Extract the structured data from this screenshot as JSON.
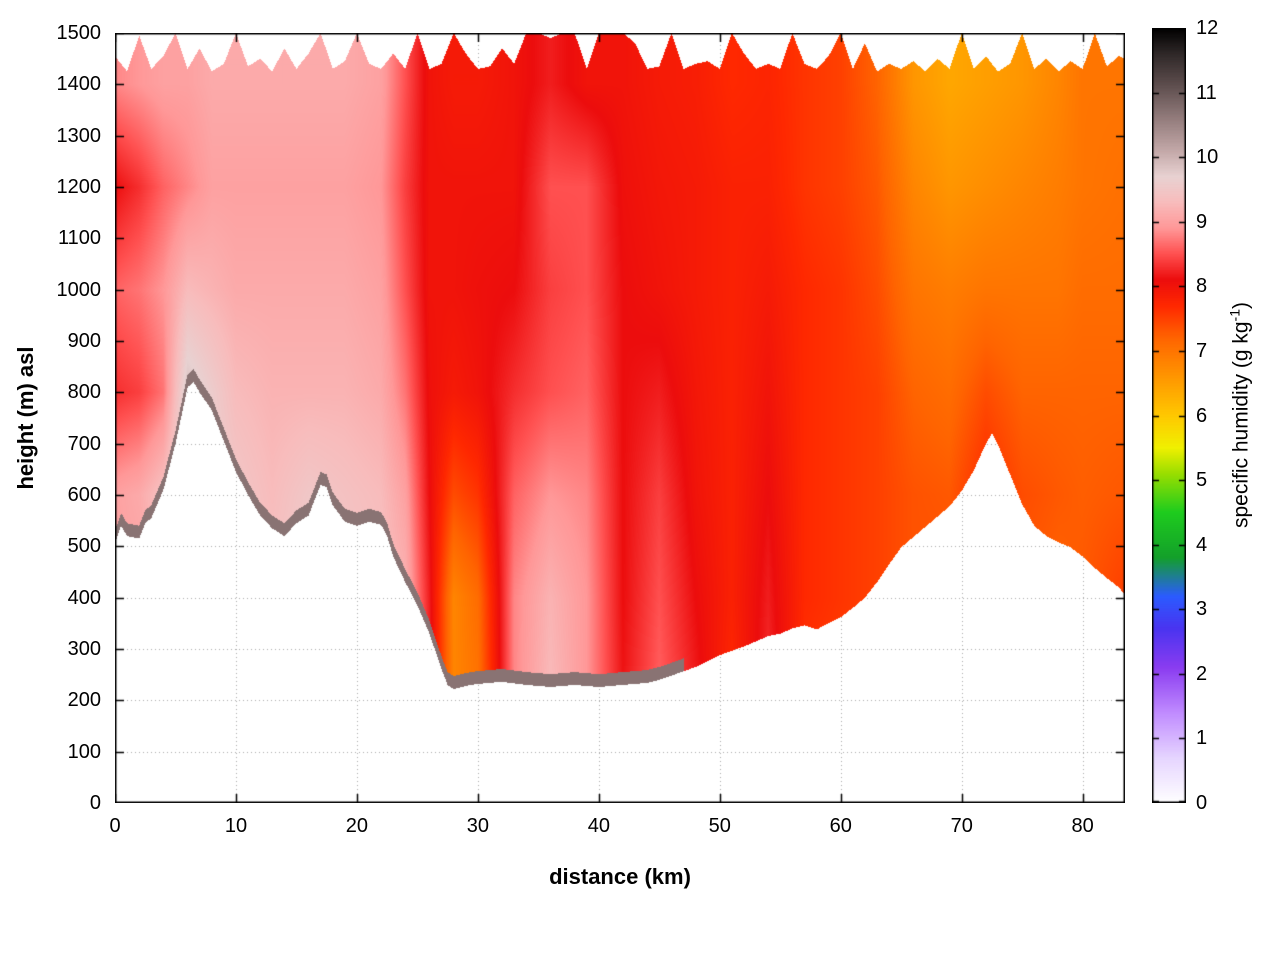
{
  "chart_data": {
    "type": "heatmap",
    "title": "",
    "xlabel": "distance (km)",
    "ylabel": "height (m) asl",
    "xlim": [
      0,
      83.5
    ],
    "ylim": [
      0,
      1500
    ],
    "xticks": [
      0,
      10,
      20,
      30,
      40,
      50,
      60,
      70,
      80
    ],
    "yticks": [
      0,
      100,
      200,
      300,
      400,
      500,
      600,
      700,
      800,
      900,
      1000,
      1100,
      1200,
      1300,
      1400,
      1500
    ],
    "grid_style": "dotted",
    "grid_color": "#a8a8a8",
    "colorbar": {
      "label_prefix": "specific humidity (g kg",
      "label_sup": "-1",
      "label_suffix": ")",
      "range": [
        0,
        12
      ],
      "ticks": [
        0,
        1,
        2,
        3,
        4,
        5,
        6,
        7,
        8,
        9,
        10,
        11,
        12
      ]
    },
    "palette": [
      [
        0.0,
        "#ffffff"
      ],
      [
        0.7,
        "#e6d5ff"
      ],
      [
        1.4,
        "#c08bff"
      ],
      [
        2.1,
        "#8a3cf0"
      ],
      [
        2.7,
        "#4a34f0"
      ],
      [
        3.2,
        "#2b5bff"
      ],
      [
        3.8,
        "#13a02a"
      ],
      [
        4.5,
        "#1ecc1e"
      ],
      [
        5.1,
        "#9ade00"
      ],
      [
        5.5,
        "#f0f000"
      ],
      [
        6.0,
        "#ffc800"
      ],
      [
        6.6,
        "#ff9600"
      ],
      [
        7.2,
        "#ff6400"
      ],
      [
        7.7,
        "#ff2800"
      ],
      [
        8.1,
        "#ec0d0d"
      ],
      [
        8.5,
        "#ff5050"
      ],
      [
        8.9,
        "#ff9898"
      ],
      [
        9.3,
        "#f8bcbc"
      ],
      [
        9.7,
        "#e8d2d2"
      ],
      [
        10.1,
        "#c3a8a8"
      ],
      [
        10.6,
        "#937c7c"
      ],
      [
        11.1,
        "#5f4f4f"
      ],
      [
        11.6,
        "#2f2828"
      ],
      [
        12.0,
        "#000000"
      ]
    ],
    "terrain": {
      "x": [
        0,
        0.5,
        1,
        2,
        2.5,
        3,
        4,
        5,
        6,
        6.5,
        7,
        8,
        9,
        10,
        11,
        12,
        13,
        14,
        15,
        16,
        17,
        17.5,
        18,
        19,
        20,
        21,
        22,
        22.5,
        23,
        24,
        25,
        26,
        27,
        27.5,
        28,
        29,
        30,
        32,
        34,
        36,
        38,
        40,
        42,
        44,
        45,
        46,
        48,
        50,
        52,
        54,
        55,
        56,
        57,
        58,
        59,
        60,
        61,
        62,
        63,
        64,
        65,
        66,
        67,
        68,
        69,
        70,
        71,
        72,
        72.5,
        73,
        74,
        75,
        76,
        77,
        78,
        79,
        80,
        81,
        82,
        83,
        83.5
      ],
      "h": [
        505,
        540,
        520,
        515,
        545,
        555,
        610,
        700,
        810,
        820,
        800,
        765,
        705,
        645,
        600,
        560,
        535,
        520,
        545,
        560,
        620,
        615,
        580,
        548,
        540,
        548,
        542,
        520,
        480,
        430,
        385,
        330,
        260,
        230,
        222,
        228,
        232,
        236,
        230,
        226,
        230,
        226,
        230,
        234,
        240,
        248,
        265,
        288,
        305,
        325,
        330,
        340,
        346,
        338,
        350,
        362,
        380,
        400,
        430,
        465,
        498,
        518,
        538,
        558,
        578,
        608,
        648,
        700,
        720,
        698,
        640,
        582,
        540,
        520,
        508,
        498,
        480,
        458,
        438,
        420,
        405
      ]
    },
    "top_edge": {
      "x": [
        0,
        1,
        2,
        3,
        4,
        5,
        6,
        7,
        8,
        9,
        10,
        11,
        12,
        13,
        14,
        15,
        16,
        17,
        18,
        19,
        20,
        21,
        22,
        23,
        24,
        25,
        26,
        27,
        28,
        29,
        30,
        31,
        32,
        33,
        34,
        35,
        36,
        37,
        38,
        39,
        40,
        41,
        42,
        43,
        44,
        45,
        46,
        47,
        48,
        49,
        50,
        51,
        52,
        53,
        54,
        55,
        56,
        57,
        58,
        59,
        60,
        61,
        62,
        63,
        64,
        65,
        66,
        67,
        68,
        69,
        70,
        71,
        72,
        73,
        74,
        75,
        76,
        77,
        78,
        79,
        80,
        81,
        82,
        83,
        83.5
      ],
      "h": [
        1455,
        1425,
        1495,
        1430,
        1455,
        1500,
        1430,
        1470,
        1425,
        1440,
        1500,
        1435,
        1450,
        1425,
        1470,
        1430,
        1460,
        1500,
        1430,
        1445,
        1500,
        1440,
        1430,
        1460,
        1430,
        1500,
        1430,
        1440,
        1500,
        1460,
        1430,
        1435,
        1470,
        1440,
        1500,
        1500,
        1490,
        1500,
        1500,
        1430,
        1500,
        1500,
        1500,
        1480,
        1430,
        1435,
        1500,
        1430,
        1440,
        1445,
        1430,
        1500,
        1460,
        1430,
        1440,
        1430,
        1500,
        1440,
        1430,
        1455,
        1500,
        1430,
        1480,
        1425,
        1440,
        1430,
        1445,
        1425,
        1450,
        1430,
        1500,
        1430,
        1455,
        1425,
        1440,
        1500,
        1430,
        1450,
        1425,
        1445,
        1430,
        1500,
        1435,
        1455,
        1450
      ]
    },
    "terrain_skin": {
      "thickness_m": 25,
      "value": 10.7,
      "x_range": [
        0,
        47
      ]
    },
    "grid_field": {
      "x": [
        0,
        2,
        4,
        6,
        8,
        10,
        13,
        16,
        19,
        22,
        24,
        26,
        28,
        30,
        33,
        36,
        39,
        42,
        45,
        48,
        51,
        54,
        57,
        60,
        63,
        66,
        69,
        72,
        75,
        78,
        80,
        83
      ],
      "y": [
        200,
        400,
        600,
        800,
        1000,
        1200,
        1400,
        1500
      ],
      "values": [
        [
          9.0,
          9.0,
          9.0,
          8.3,
          8.6,
          8.1,
          8.8,
          8.8
        ],
        [
          9.0,
          9.0,
          9.1,
          8.4,
          8.7,
          8.3,
          8.9,
          8.9
        ],
        [
          9.3,
          9.3,
          9.4,
          8.7,
          8.9,
          8.6,
          9.0,
          9.0
        ],
        [
          9.8,
          9.8,
          9.9,
          9.9,
          9.3,
          8.8,
          9.0,
          9.0
        ],
        [
          9.7,
          9.7,
          9.7,
          9.6,
          9.2,
          9.0,
          9.1,
          9.1
        ],
        [
          9.6,
          9.6,
          9.5,
          9.3,
          9.1,
          9.0,
          9.1,
          9.1
        ],
        [
          9.4,
          9.4,
          9.3,
          9.2,
          9.1,
          9.0,
          9.1,
          9.1
        ],
        [
          9.6,
          9.6,
          9.5,
          9.2,
          9.1,
          9.0,
          9.1,
          9.1
        ],
        [
          9.5,
          9.5,
          9.4,
          9.2,
          9.1,
          9.0,
          9.1,
          9.1
        ],
        [
          9.4,
          9.4,
          9.3,
          9.1,
          9.0,
          8.9,
          9.0,
          9.0
        ],
        [
          9.2,
          9.2,
          9.0,
          8.7,
          8.5,
          8.4,
          8.5,
          8.5
        ],
        [
          8.3,
          8.2,
          8.1,
          8.05,
          8.0,
          8.0,
          8.0,
          8.0
        ],
        [
          6.8,
          6.8,
          7.4,
          7.9,
          8.0,
          8.0,
          7.9,
          7.9
        ],
        [
          7.0,
          7.1,
          7.6,
          8.0,
          8.05,
          8.0,
          7.9,
          7.9
        ],
        [
          8.8,
          8.8,
          8.6,
          8.3,
          8.1,
          8.0,
          8.0,
          8.0
        ],
        [
          9.3,
          9.2,
          8.9,
          8.5,
          8.4,
          8.5,
          8.2,
          8.2
        ],
        [
          8.9,
          8.9,
          8.8,
          8.6,
          8.5,
          8.5,
          8.0,
          8.0
        ],
        [
          8.15,
          8.1,
          8.1,
          8.1,
          8.1,
          8.05,
          8.0,
          8.0
        ],
        [
          8.6,
          8.5,
          8.4,
          8.2,
          8.0,
          7.95,
          7.9,
          7.9
        ],
        [
          8.2,
          8.1,
          8.0,
          7.95,
          7.9,
          7.9,
          7.85,
          7.85
        ],
        [
          7.7,
          7.8,
          7.8,
          7.8,
          7.8,
          7.8,
          7.7,
          7.7
        ],
        [
          8.3,
          8.2,
          8.1,
          8.0,
          7.9,
          7.8,
          7.75,
          7.75
        ],
        [
          7.6,
          7.7,
          7.7,
          7.7,
          7.7,
          7.6,
          7.6,
          7.6
        ],
        [
          7.5,
          7.6,
          7.6,
          7.6,
          7.6,
          7.5,
          7.5,
          7.5
        ],
        [
          7.4,
          7.5,
          7.5,
          7.5,
          7.4,
          7.3,
          7.2,
          7.2
        ],
        [
          7.3,
          7.35,
          7.35,
          7.2,
          7.0,
          6.8,
          6.6,
          6.6
        ],
        [
          7.4,
          7.4,
          7.3,
          7.1,
          6.9,
          6.6,
          6.4,
          6.4
        ],
        [
          7.6,
          7.6,
          7.7,
          7.4,
          7.0,
          6.7,
          6.5,
          6.5
        ],
        [
          7.3,
          7.3,
          7.4,
          7.2,
          7.0,
          6.8,
          6.6,
          6.6
        ],
        [
          7.2,
          7.2,
          7.3,
          7.2,
          7.0,
          6.9,
          6.8,
          6.8
        ],
        [
          7.3,
          7.3,
          7.25,
          7.2,
          7.1,
          7.0,
          7.0,
          7.0
        ],
        [
          7.5,
          7.5,
          7.3,
          7.2,
          7.1,
          7.05,
          7.0,
          7.0
        ]
      ]
    }
  }
}
